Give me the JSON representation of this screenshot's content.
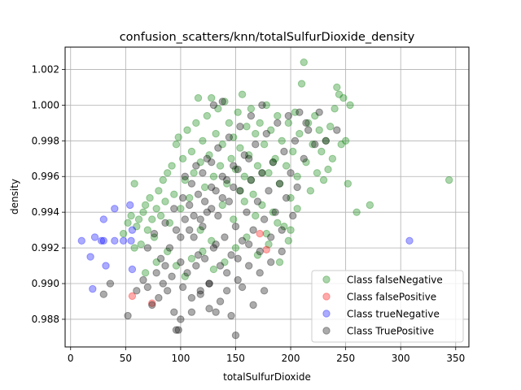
{
  "chart_data": {
    "type": "scatter",
    "title": "confusion_scatters/knn/totalSulfurDioxide_density",
    "xlabel": "totalSulfurDioxide",
    "ylabel": "density",
    "xlim": [
      -5,
      362
    ],
    "ylim": [
      0.98645,
      1.00325
    ],
    "xticks": [
      0,
      50,
      100,
      150,
      200,
      250,
      300,
      350
    ],
    "yticks": [
      0.988,
      0.99,
      0.992,
      0.994,
      0.996,
      0.998,
      1.0,
      1.002
    ],
    "ytick_labels": [
      "0.988",
      "0.990",
      "0.992",
      "0.994",
      "0.996",
      "0.998",
      "1.000",
      "1.002"
    ],
    "grid": true,
    "legend_position": "lower-right",
    "series": [
      {
        "name": "Class falseNegative",
        "color": "#008000",
        "points": [
          [
            48,
            0.9928
          ],
          [
            52,
            0.9934
          ],
          [
            55,
            0.9938
          ],
          [
            58,
            0.9956
          ],
          [
            60,
            0.9932
          ],
          [
            62,
            0.9936
          ],
          [
            64,
            0.9922
          ],
          [
            66,
            0.994
          ],
          [
            68,
            0.9944
          ],
          [
            70,
            0.993
          ],
          [
            72,
            0.9948
          ],
          [
            74,
            0.9936
          ],
          [
            76,
            0.9926
          ],
          [
            78,
            0.9942
          ],
          [
            80,
            0.9952
          ],
          [
            82,
            0.9938
          ],
          [
            84,
            0.9958
          ],
          [
            86,
            0.9946
          ],
          [
            88,
            0.9962
          ],
          [
            90,
            0.9934
          ],
          [
            92,
            0.9966
          ],
          [
            94,
            0.995
          ],
          [
            96,
            0.9978
          ],
          [
            98,
            0.9982
          ],
          [
            100,
            0.9942
          ],
          [
            102,
            0.997
          ],
          [
            104,
            0.9958
          ],
          [
            106,
            0.9986
          ],
          [
            108,
            0.9948
          ],
          [
            110,
            0.9974
          ],
          [
            112,
            0.9962
          ],
          [
            114,
            0.999
          ],
          [
            116,
            1.0004
          ],
          [
            118,
            0.9968
          ],
          [
            120,
            0.998
          ],
          [
            122,
            0.9954
          ],
          [
            124,
            0.9994
          ],
          [
            126,
            0.9972
          ],
          [
            128,
            1.0004
          ],
          [
            130,
            0.996
          ],
          [
            132,
            0.9984
          ],
          [
            134,
            0.9998
          ],
          [
            136,
            0.9966
          ],
          [
            138,
            0.9978
          ],
          [
            140,
            1.0002
          ],
          [
            142,
            0.9956
          ],
          [
            144,
            0.999
          ],
          [
            146,
            0.997
          ],
          [
            148,
            0.9982
          ],
          [
            150,
            0.9964
          ],
          [
            152,
            0.9996
          ],
          [
            154,
            0.9976
          ],
          [
            156,
            1.0006
          ],
          [
            158,
            0.996
          ],
          [
            160,
            0.9988
          ],
          [
            162,
            0.9972
          ],
          [
            164,
            0.9998
          ],
          [
            166,
            0.995
          ],
          [
            168,
            0.9984
          ],
          [
            170,
            0.9966
          ],
          [
            172,
            0.999
          ],
          [
            174,
            0.9944
          ],
          [
            176,
            0.9978
          ],
          [
            178,
            1.0
          ],
          [
            180,
            0.9962
          ],
          [
            182,
            0.9986
          ],
          [
            184,
            0.994
          ],
          [
            186,
            0.997
          ],
          [
            188,
            0.9994
          ],
          [
            190,
            0.9956
          ],
          [
            192,
            0.998
          ],
          [
            194,
            0.9932
          ],
          [
            196,
            0.9966
          ],
          [
            198,
            0.999
          ],
          [
            200,
            0.9948
          ],
          [
            202,
            0.9974
          ],
          [
            204,
            0.9996
          ],
          [
            206,
            0.996
          ],
          [
            208,
            0.9984
          ],
          [
            210,
            1.0012
          ],
          [
            212,
            1.0024
          ],
          [
            214,
            0.9968
          ],
          [
            216,
            0.999
          ],
          [
            218,
            0.9952
          ],
          [
            220,
            0.9978
          ],
          [
            222,
            0.9994
          ],
          [
            224,
            0.9962
          ],
          [
            226,
            0.9986
          ],
          [
            228,
            0.9974
          ],
          [
            230,
            0.9958
          ],
          [
            232,
            0.998
          ],
          [
            234,
            0.9964
          ],
          [
            236,
            0.9988
          ],
          [
            238,
            0.997
          ],
          [
            240,
            0.9998
          ],
          [
            242,
            1.001
          ],
          [
            244,
            1.0006
          ],
          [
            246,
            0.9978
          ],
          [
            248,
            1.0004
          ],
          [
            250,
            0.998
          ],
          [
            252,
            0.9956
          ],
          [
            254,
            1.0
          ],
          [
            260,
            0.994
          ],
          [
            272,
            0.9944
          ],
          [
            344,
            0.9958
          ],
          [
            118,
            0.993
          ],
          [
            128,
            0.9924
          ],
          [
            138,
            0.9944
          ],
          [
            148,
            0.9936
          ],
          [
            158,
            0.9946
          ],
          [
            168,
            0.9938
          ],
          [
            178,
            0.9928
          ],
          [
            188,
            0.9934
          ],
          [
            198,
            0.9924
          ],
          [
            206,
            0.9942
          ],
          [
            110,
            0.9914
          ],
          [
            120,
            0.9918
          ],
          [
            130,
            0.9908
          ],
          [
            140,
            0.9912
          ],
          [
            150,
            0.992
          ],
          [
            160,
            0.9926
          ],
          [
            170,
            0.9916
          ],
          [
            180,
            0.9922
          ],
          [
            190,
            0.9912
          ],
          [
            200,
            0.993
          ],
          [
            96,
            0.991
          ],
          [
            104,
            0.9904
          ],
          [
            88,
            0.9918
          ],
          [
            78,
            0.9912
          ],
          [
            68,
            0.9906
          ],
          [
            58,
            0.992
          ],
          [
            154,
            0.9952
          ],
          [
            164,
            0.9958
          ],
          [
            174,
            0.9962
          ],
          [
            184,
            0.9968
          ]
        ]
      },
      {
        "name": "Class falsePositive",
        "color": "#ff0000",
        "points": [
          [
            56,
            0.9893
          ],
          [
            74,
            0.9889
          ],
          [
            172,
            0.9928
          ],
          [
            178,
            0.9919
          ]
        ]
      },
      {
        "name": "Class trueNegative",
        "color": "#0000ff",
        "points": [
          [
            10,
            0.9924
          ],
          [
            18,
            0.9915
          ],
          [
            20,
            0.9897
          ],
          [
            22,
            0.9926
          ],
          [
            28,
            0.9924
          ],
          [
            30,
            0.9924
          ],
          [
            30,
            0.9936
          ],
          [
            32,
            0.991
          ],
          [
            40,
            0.9924
          ],
          [
            40,
            0.9942
          ],
          [
            48,
            0.9924
          ],
          [
            54,
            0.9944
          ],
          [
            56,
            0.993
          ],
          [
            56,
            0.9908
          ],
          [
            55,
            0.9924
          ],
          [
            308,
            0.9924
          ]
        ]
      },
      {
        "name": "Class TruePositive",
        "color": "#000000",
        "points": [
          [
            30,
            0.9894
          ],
          [
            36,
            0.99
          ],
          [
            52,
            0.9882
          ],
          [
            60,
            0.9896
          ],
          [
            66,
            0.9902
          ],
          [
            70,
            0.9898
          ],
          [
            74,
            0.9888
          ],
          [
            78,
            0.9906
          ],
          [
            80,
            0.9892
          ],
          [
            82,
            0.9914
          ],
          [
            84,
            0.99
          ],
          [
            86,
            0.991
          ],
          [
            88,
            0.9896
          ],
          [
            90,
            0.992
          ],
          [
            92,
            0.9904
          ],
          [
            94,
            0.9884
          ],
          [
            96,
            0.993
          ],
          [
            98,
            0.9874
          ],
          [
            100,
            0.9912
          ],
          [
            102,
            0.9898
          ],
          [
            104,
            0.9936
          ],
          [
            106,
            0.9906
          ],
          [
            108,
            0.9944
          ],
          [
            110,
            0.9892
          ],
          [
            112,
            0.9926
          ],
          [
            114,
            0.991
          ],
          [
            116,
            0.995
          ],
          [
            118,
            0.9896
          ],
          [
            120,
            0.9932
          ],
          [
            122,
            0.9914
          ],
          [
            124,
            0.994
          ],
          [
            126,
            0.99
          ],
          [
            128,
            0.9954
          ],
          [
            130,
            0.992
          ],
          [
            132,
            0.9884
          ],
          [
            134,
            0.9938
          ],
          [
            136,
            0.991
          ],
          [
            138,
            0.996
          ],
          [
            140,
            0.9926
          ],
          [
            142,
            0.9896
          ],
          [
            144,
            0.9946
          ],
          [
            146,
            0.9916
          ],
          [
            148,
            0.9966
          ],
          [
            150,
            0.9932
          ],
          [
            152,
            0.9902
          ],
          [
            154,
            0.9952
          ],
          [
            156,
            0.9924
          ],
          [
            158,
            0.9972
          ],
          [
            160,
            0.994
          ],
          [
            162,
            0.991
          ],
          [
            164,
            0.9958
          ],
          [
            166,
            0.993
          ],
          [
            168,
            0.9978
          ],
          [
            170,
            0.9946
          ],
          [
            172,
            0.9918
          ],
          [
            174,
            0.9962
          ],
          [
            176,
            0.9936
          ],
          [
            178,
            0.9984
          ],
          [
            180,
            0.9952
          ],
          [
            182,
            0.9926
          ],
          [
            184,
            0.9968
          ],
          [
            186,
            0.994
          ],
          [
            188,
            0.999
          ],
          [
            190,
            0.9956
          ],
          [
            192,
            0.993
          ],
          [
            194,
            0.9974
          ],
          [
            196,
            0.9948
          ],
          [
            198,
            0.9994
          ],
          [
            200,
            0.9962
          ],
          [
            202,
            0.9938
          ],
          [
            204,
            0.998
          ],
          [
            206,
            0.9954
          ],
          [
            208,
            0.9996
          ],
          [
            212,
            0.997
          ],
          [
            214,
            0.999
          ],
          [
            216,
            0.9986
          ],
          [
            222,
            0.9978
          ],
          [
            226,
            0.9996
          ],
          [
            232,
            0.998
          ],
          [
            242,
            0.9986
          ],
          [
            100,
            0.988
          ],
          [
            110,
            0.9884
          ],
          [
            118,
            0.9894
          ],
          [
            126,
            0.9886
          ],
          [
            136,
            0.989
          ],
          [
            146,
            0.9882
          ],
          [
            156,
            0.9898
          ],
          [
            166,
            0.9888
          ],
          [
            176,
            0.9896
          ],
          [
            150,
            0.9871
          ],
          [
            96,
            0.9874
          ],
          [
            126,
            0.99
          ],
          [
            116,
            0.9916
          ],
          [
            132,
            0.9922
          ],
          [
            142,
            0.9906
          ],
          [
            152,
            0.9914
          ],
          [
            162,
            0.9922
          ],
          [
            172,
            0.9906
          ],
          [
            182,
            0.9912
          ],
          [
            192,
            0.9918
          ],
          [
            104,
            0.996
          ],
          [
            114,
            0.9966
          ],
          [
            124,
            0.997
          ],
          [
            134,
            0.9976
          ],
          [
            144,
            0.9982
          ],
          [
            154,
            0.9988
          ],
          [
            164,
            0.9994
          ],
          [
            174,
            1.0
          ],
          [
            138,
            1.0002
          ],
          [
            130,
            1.0
          ],
          [
            70,
            0.992
          ],
          [
            76,
            0.9928
          ],
          [
            86,
            0.9934
          ],
          [
            94,
            0.9942
          ],
          [
            102,
            0.9948
          ],
          [
            110,
            0.9956
          ],
          [
            120,
            0.9962
          ],
          [
            128,
            0.9968
          ],
          [
            112,
            0.9938
          ],
          [
            122,
            0.9946
          ],
          [
            132,
            0.9952
          ],
          [
            142,
            0.9958
          ],
          [
            152,
            0.9964
          ],
          [
            162,
            0.997
          ],
          [
            100,
            0.9926
          ],
          [
            108,
            0.993
          ],
          [
            118,
            0.9936
          ],
          [
            128,
            0.9942
          ],
          [
            138,
            0.9948
          ],
          [
            148,
            0.9954
          ]
        ]
      }
    ]
  }
}
